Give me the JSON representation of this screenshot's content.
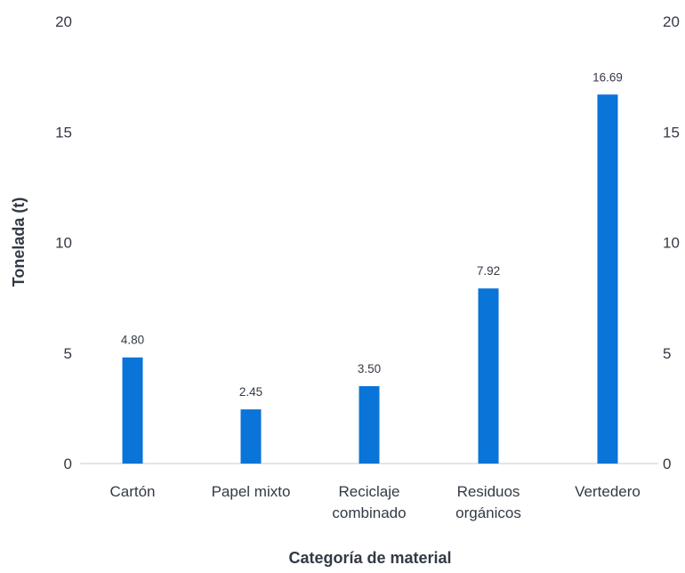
{
  "chart_data": {
    "type": "bar",
    "title": "",
    "xlabel": "Categoría de material",
    "ylabel": "Tonelada (t)",
    "ylim": [
      0,
      20
    ],
    "yticks": [
      0,
      5,
      10,
      15,
      20
    ],
    "y2ticks": [
      0,
      5,
      10,
      15,
      20
    ],
    "categories": [
      [
        "Cartón"
      ],
      [
        "Papel mixto"
      ],
      [
        "Reciclaje",
        "combinado"
      ],
      [
        "Residuos",
        "orgánicos"
      ],
      [
        "Vertedero"
      ]
    ],
    "values": [
      4.8,
      2.45,
      3.5,
      7.92,
      16.69
    ],
    "value_labels": [
      "4.80",
      "2.45",
      "3.50",
      "7.92",
      "16.69"
    ],
    "grid": false,
    "legend": "none",
    "bar_color": "#0a74d8"
  }
}
